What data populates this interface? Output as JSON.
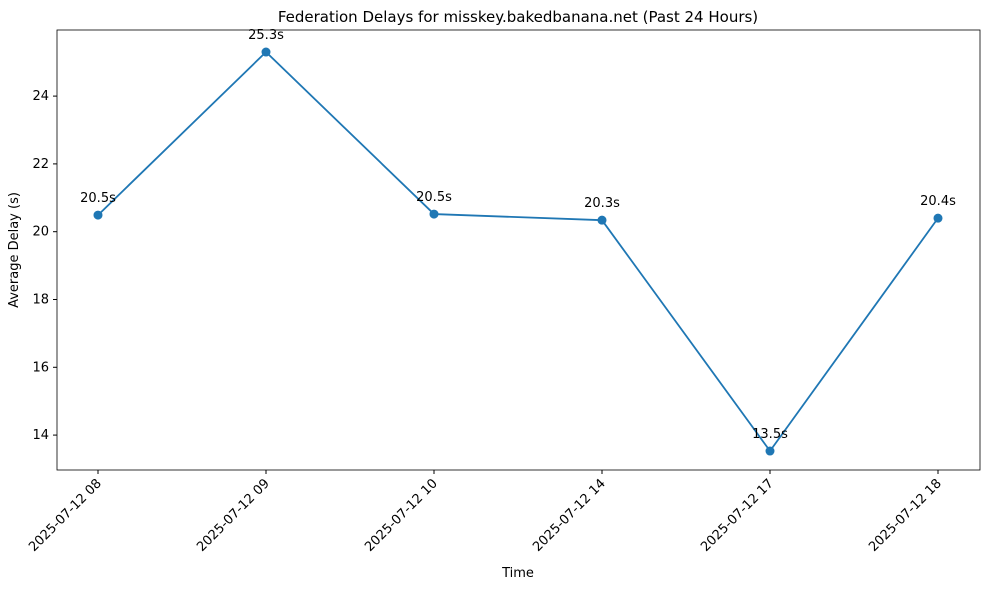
{
  "chart_data": {
    "type": "line",
    "title": "Federation Delays for misskey.bakedbanana.net (Past 24 Hours)",
    "x_label": "Time",
    "y_label": "Average Delay (s)",
    "categories": [
      "2025-07-12 08",
      "2025-07-12 09",
      "2025-07-12 10",
      "2025-07-12 14",
      "2025-07-12 17",
      "2025-07-12 18"
    ],
    "series": [
      {
        "color": "#1f77b4",
        "values": [
          20.49,
          25.3,
          20.52,
          20.34,
          13.53,
          20.4
        ],
        "value_labels": [
          "20.5s",
          "25.3s",
          "20.5s",
          "20.3s",
          "13.5s",
          "20.4s"
        ]
      }
    ],
    "ylim": [
      12.97,
      25.95
    ],
    "yticks": [
      14,
      16,
      18,
      20,
      22,
      24
    ]
  }
}
